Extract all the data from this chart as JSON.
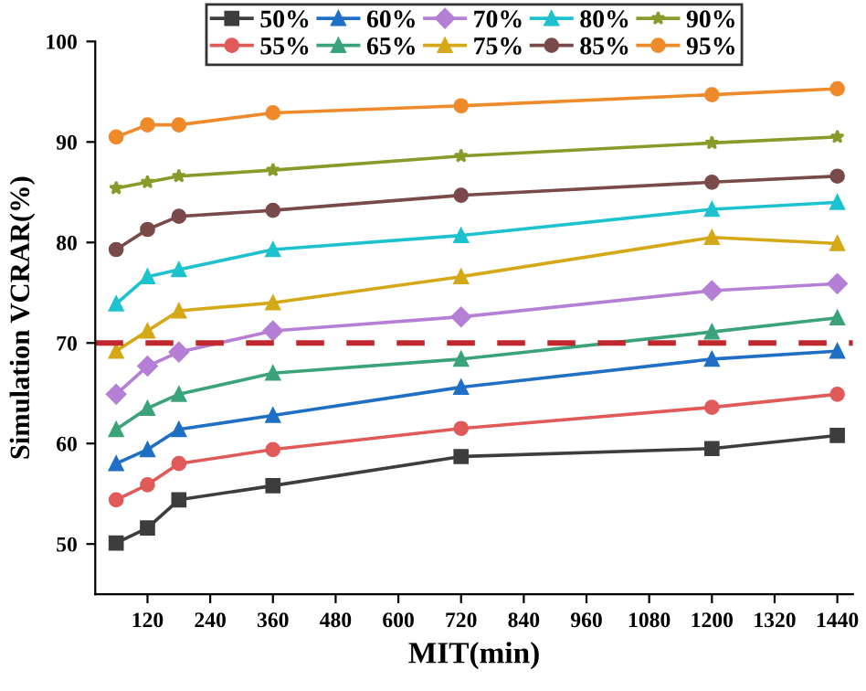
{
  "chart_data": {
    "type": "line",
    "xlabel": "MIT(min)",
    "ylabel": "Simulation VCRAR(%)",
    "x": [
      60,
      120,
      180,
      360,
      720,
      1200,
      1440
    ],
    "series": [
      {
        "name": "50%",
        "color": "#3d3d3d",
        "marker": "square",
        "values": [
          50.1,
          51.6,
          54.4,
          55.8,
          58.7,
          59.5,
          60.8
        ]
      },
      {
        "name": "55%",
        "color": "#e05a5a",
        "marker": "circle",
        "values": [
          54.4,
          55.9,
          58.0,
          59.4,
          61.5,
          63.6,
          64.9
        ]
      },
      {
        "name": "60%",
        "color": "#1f6fc4",
        "marker": "triangle",
        "values": [
          58.0,
          59.4,
          61.4,
          62.8,
          65.6,
          68.4,
          69.2
        ]
      },
      {
        "name": "65%",
        "color": "#3aa37a",
        "marker": "triangle",
        "values": [
          61.4,
          63.5,
          64.9,
          67.0,
          68.4,
          71.1,
          72.5
        ]
      },
      {
        "name": "70%",
        "color": "#b57fd6",
        "marker": "diamond",
        "values": [
          64.9,
          67.7,
          69.1,
          71.2,
          72.6,
          75.2,
          75.9
        ]
      },
      {
        "name": "75%",
        "color": "#d4a817",
        "marker": "triangle",
        "values": [
          69.2,
          71.2,
          73.2,
          74.0,
          76.6,
          80.5,
          79.9
        ]
      },
      {
        "name": "80%",
        "color": "#1ec2cf",
        "marker": "triangle",
        "values": [
          73.9,
          76.6,
          77.3,
          79.3,
          80.7,
          83.3,
          84.0
        ]
      },
      {
        "name": "85%",
        "color": "#7a4a4a",
        "marker": "circle",
        "values": [
          79.3,
          81.3,
          82.6,
          83.2,
          84.7,
          86.0,
          86.6
        ]
      },
      {
        "name": "90%",
        "color": "#8a9a2a",
        "marker": "star",
        "values": [
          85.4,
          86.0,
          86.6,
          87.2,
          88.6,
          89.9,
          90.5
        ]
      },
      {
        "name": "95%",
        "color": "#ef8a2a",
        "marker": "circle",
        "values": [
          90.5,
          91.7,
          91.7,
          92.9,
          93.6,
          94.7,
          95.3
        ]
      }
    ],
    "ref_lines": [
      {
        "axis": "y",
        "value": 70,
        "color": "#c0282d",
        "line_style": "dashed"
      }
    ],
    "xlim": [
      20,
      1470
    ],
    "xticks": [
      120,
      240,
      360,
      480,
      600,
      720,
      840,
      960,
      1080,
      1200,
      1320,
      1440
    ],
    "ylim": [
      45,
      100
    ],
    "yticks": [
      50,
      60,
      70,
      80,
      90,
      100
    ],
    "grid": false,
    "legend": "top"
  }
}
